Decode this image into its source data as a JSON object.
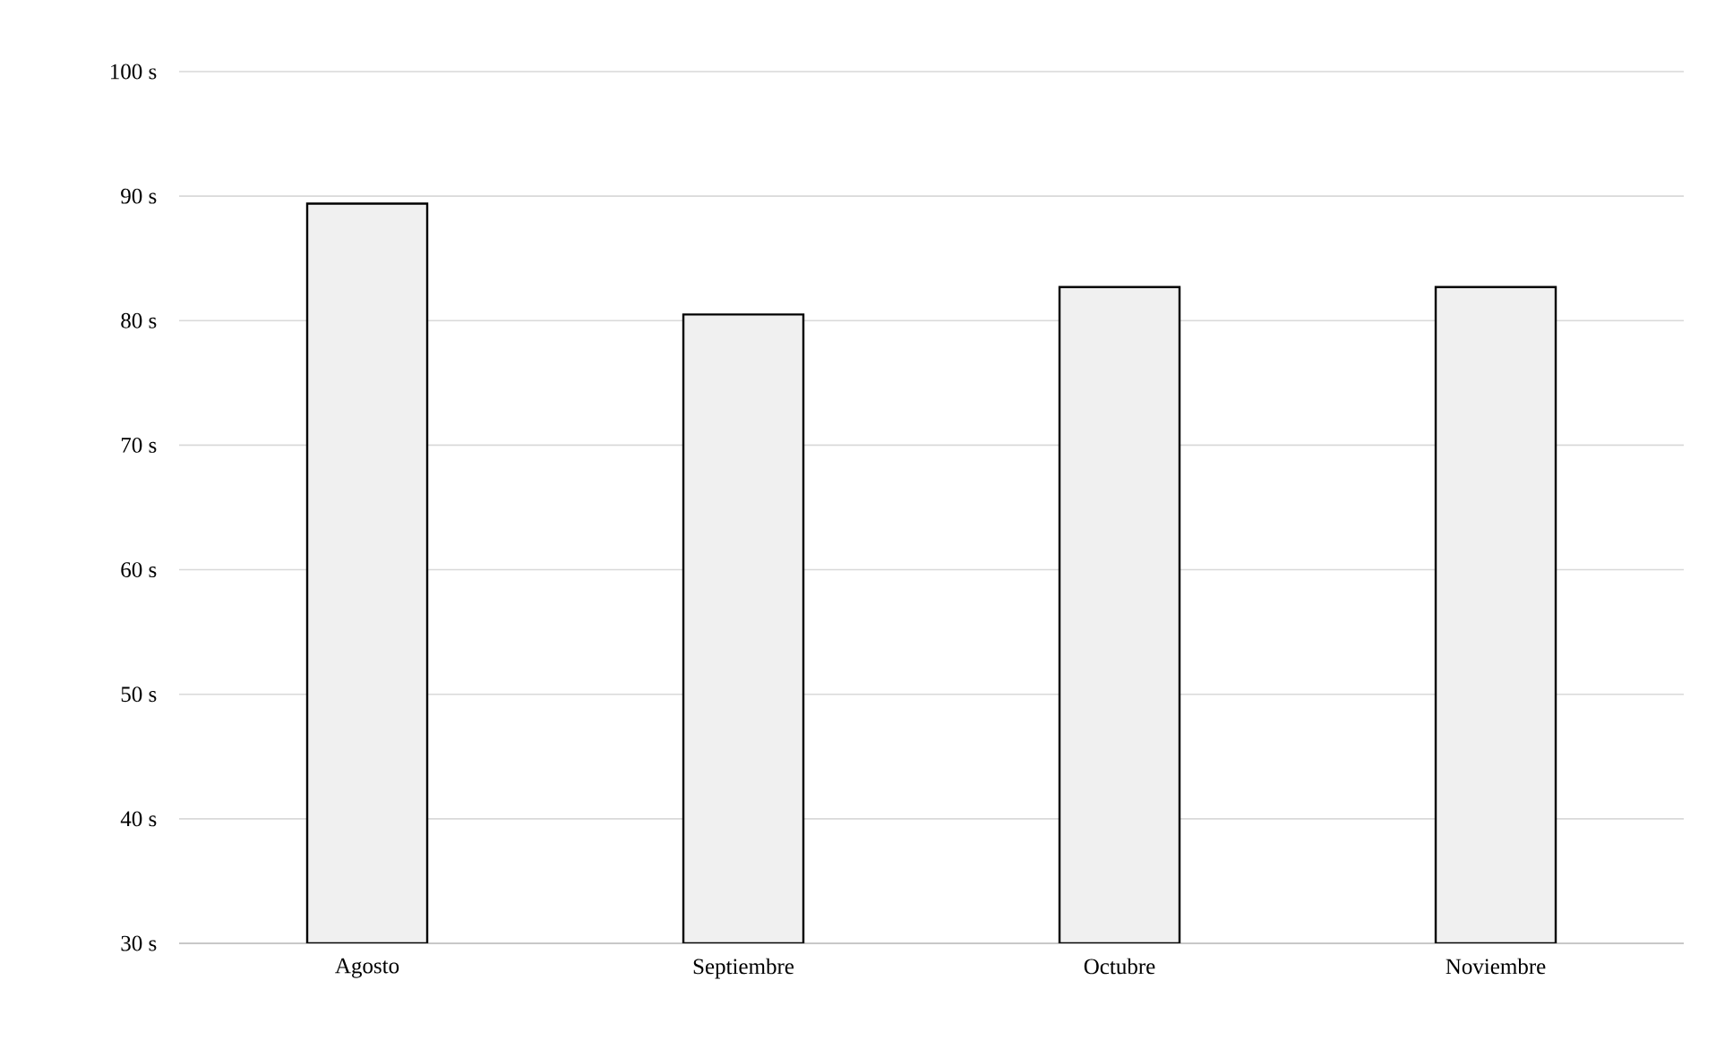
{
  "chart_data": {
    "type": "bar",
    "categories": [
      "Agosto",
      "Septiembre",
      "Octubre",
      "Noviembre"
    ],
    "values": [
      89.4,
      80.5,
      82.7,
      82.7
    ],
    "color": "#f0f0f0",
    "ylim": [
      30,
      100
    ],
    "yticks": [
      {
        "value": 30,
        "label": "30 s"
      },
      {
        "value": 40,
        "label": "40 s"
      },
      {
        "value": 50,
        "label": "50 s"
      },
      {
        "value": 60,
        "label": "60 s"
      },
      {
        "value": 70,
        "label": "70 s"
      },
      {
        "value": 80,
        "label": "80 s"
      },
      {
        "value": 90,
        "label": "90 s"
      },
      {
        "value": 100,
        "label": "100 s"
      }
    ],
    "grid": "y"
  }
}
